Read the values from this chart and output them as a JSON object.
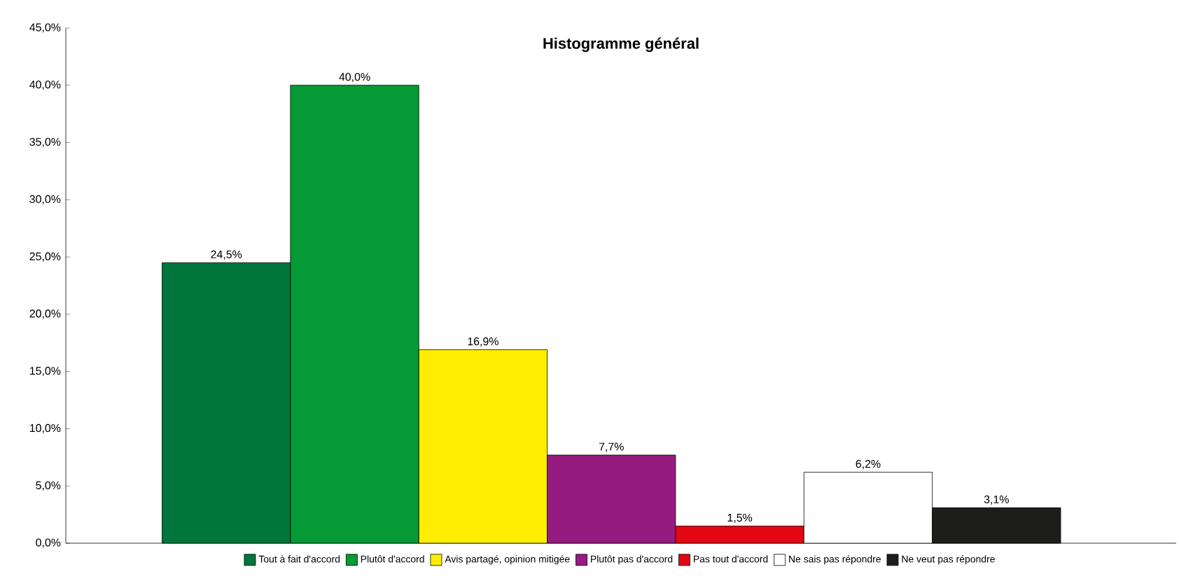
{
  "chart_data": {
    "type": "bar",
    "title": "Histogramme général",
    "categories": [
      null
    ],
    "series": [
      {
        "name": "Tout à fait d'accord",
        "color": "#00763a",
        "values": [
          24.5
        ],
        "value_labels": [
          "24,5%"
        ]
      },
      {
        "name": "Plutôt d'accord",
        "color": "#069a36",
        "values": [
          40.0
        ],
        "value_labels": [
          "40,0%"
        ]
      },
      {
        "name": "Avis partagé, opinion mitigée",
        "color": "#ffed00",
        "values": [
          16.9
        ],
        "value_labels": [
          "16,9%"
        ]
      },
      {
        "name": "Plutôt pas d'accord",
        "color": "#951b81",
        "values": [
          7.7
        ],
        "value_labels": [
          "7,7%"
        ]
      },
      {
        "name": "Pas tout d'accord",
        "color": "#e30613",
        "values": [
          1.5
        ],
        "value_labels": [
          "1,5%"
        ]
      },
      {
        "name": "Ne sais pas répondre",
        "color": "#ffffff",
        "values": [
          6.2
        ],
        "value_labels": [
          "6,2%"
        ]
      },
      {
        "name": "Ne veut pas répondre",
        "color": "#1d1d1b",
        "values": [
          3.1
        ],
        "value_labels": [
          "3,1%"
        ]
      }
    ],
    "ylim": [
      0,
      45
    ],
    "yticks": [
      {
        "value": 0,
        "label": "0,0%"
      },
      {
        "value": 5,
        "label": "5,0%"
      },
      {
        "value": 10,
        "label": "10,0%"
      },
      {
        "value": 15,
        "label": "15,0%"
      },
      {
        "value": 20,
        "label": "20,0%"
      },
      {
        "value": 25,
        "label": "25,0%"
      },
      {
        "value": 30,
        "label": "30,0%"
      },
      {
        "value": 35,
        "label": "35,0%"
      },
      {
        "value": 40,
        "label": "40,0%"
      },
      {
        "value": 45,
        "label": "45,0%"
      }
    ],
    "grid": false,
    "legend": "bottom"
  }
}
